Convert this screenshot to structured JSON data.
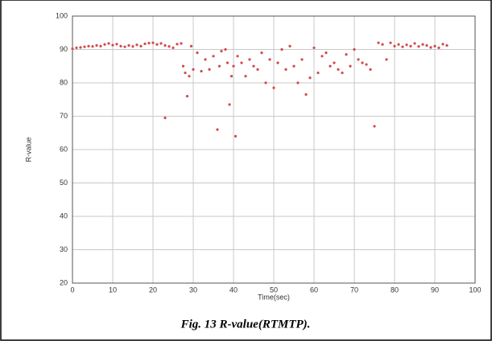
{
  "chart_data": {
    "type": "scatter",
    "caption": "Fig. 13 R-value(RTMTP).",
    "xlabel": "Time(sec)",
    "ylabel": "R-value",
    "color": "#d24a4a",
    "grid": true,
    "xlim": [
      0,
      100
    ],
    "ylim": [
      20,
      100
    ],
    "xticks": [
      0,
      10,
      20,
      30,
      40,
      50,
      60,
      70,
      80,
      90,
      100
    ],
    "yticks": [
      20,
      30,
      40,
      50,
      60,
      70,
      80,
      90,
      100
    ],
    "x": [
      0,
      1,
      2,
      3,
      4,
      5,
      6,
      7,
      8,
      9,
      10,
      11,
      12,
      13,
      14,
      15,
      16,
      17,
      18,
      19,
      20,
      21,
      22,
      23,
      24,
      25,
      26,
      27,
      27.5,
      28,
      28.5,
      29,
      29.5,
      30,
      31,
      32,
      33,
      34,
      35,
      36,
      36.5,
      37,
      38,
      38.5,
      39,
      39.5,
      40,
      40.5,
      41,
      42,
      43,
      44,
      45,
      46,
      47,
      48,
      49,
      50,
      51,
      52,
      53,
      54,
      55,
      56,
      57,
      58,
      59,
      60,
      61,
      62,
      63,
      64,
      65,
      66,
      67,
      68,
      69,
      70,
      71,
      72,
      73,
      74,
      75,
      76,
      77,
      78,
      79,
      80,
      81,
      82,
      83,
      84,
      85,
      86,
      87,
      88,
      89,
      90,
      91,
      92,
      93,
      23
    ],
    "values": [
      90.2,
      90.5,
      90.6,
      90.8,
      91,
      90.9,
      91.2,
      91,
      91.5,
      91.8,
      91.3,
      91.6,
      91,
      90.8,
      91.2,
      90.9,
      91.4,
      91,
      91.7,
      91.9,
      92,
      91.5,
      91.8,
      91.2,
      90.9,
      90.5,
      91.6,
      91.8,
      85,
      83,
      76,
      82,
      91,
      84,
      89,
      83.5,
      87,
      84,
      88,
      66,
      85,
      89.5,
      90,
      86,
      73.5,
      82,
      85,
      64,
      88,
      86,
      82,
      87,
      85,
      84,
      89,
      80,
      87,
      78.5,
      86,
      90,
      84,
      91,
      85,
      80,
      87,
      76.5,
      81.5,
      90.5,
      83,
      88,
      89,
      85,
      86,
      84,
      83,
      88.5,
      85,
      90,
      87,
      86,
      85.5,
      84,
      67,
      92,
      91.5,
      87,
      92,
      91,
      91.5,
      90.8,
      91.4,
      91,
      91.8,
      90.9,
      91.5,
      91.2,
      90.6,
      91,
      90.5,
      91.6,
      91.2,
      69.5
    ]
  }
}
